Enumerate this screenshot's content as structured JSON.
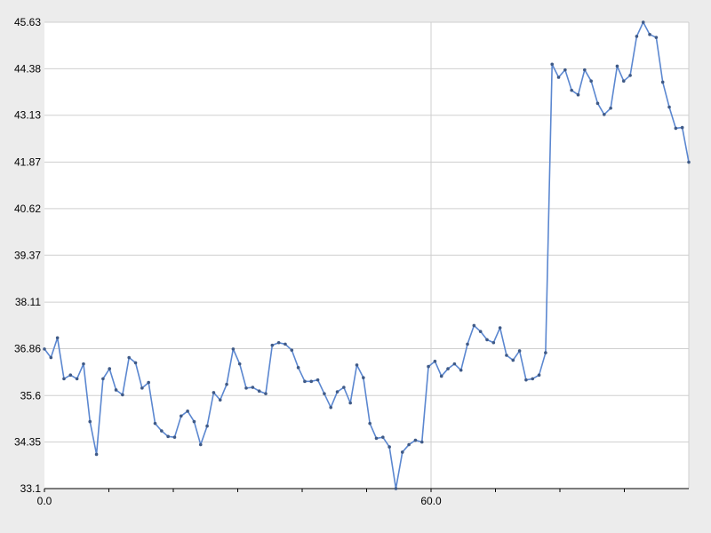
{
  "chart_data": {
    "type": "line",
    "title": "",
    "xlabel": "",
    "ylabel": "",
    "xlim": [
      0,
      100
    ],
    "ylim": [
      33.1,
      45.63
    ],
    "x_tick_labels": [
      {
        "value": 0,
        "label": "0.0"
      },
      {
        "value": 60,
        "label": "60.0"
      }
    ],
    "x_minor_ticks": [
      10,
      20,
      30,
      40,
      50,
      70,
      80,
      90
    ],
    "y_tick_labels": [
      {
        "value": 33.1,
        "label": "33.1"
      },
      {
        "value": 34.35,
        "label": "34.35"
      },
      {
        "value": 35.6,
        "label": "35.6"
      },
      {
        "value": 36.86,
        "label": "36.86"
      },
      {
        "value": 38.11,
        "label": "38.11"
      },
      {
        "value": 39.37,
        "label": "39.37"
      },
      {
        "value": 40.62,
        "label": "40.62"
      },
      {
        "value": 41.87,
        "label": "41.87"
      },
      {
        "value": 43.13,
        "label": "43.13"
      },
      {
        "value": 44.38,
        "label": "44.38"
      },
      {
        "value": 45.63,
        "label": "45.63"
      }
    ],
    "grid": {
      "horizontal": true,
      "vertical_at": [
        60
      ]
    },
    "colors": {
      "line": "#5b87d0",
      "marker": "#3f5a87",
      "grid": "#cfcfcf",
      "plot_bg": "#ffffff",
      "page_bg": "#ececec"
    },
    "series": [
      {
        "values": [
          36.85,
          36.62,
          37.15,
          36.05,
          36.15,
          36.05,
          36.45,
          34.9,
          34.02,
          36.05,
          36.32,
          35.75,
          35.62,
          36.62,
          36.48,
          35.8,
          35.95,
          34.85,
          34.65,
          34.5,
          34.48,
          35.05,
          35.18,
          34.9,
          34.28,
          34.78,
          35.68,
          35.48,
          35.9,
          36.85,
          36.45,
          35.8,
          35.82,
          35.72,
          35.65,
          36.95,
          37.02,
          36.98,
          36.82,
          36.35,
          35.98,
          35.98,
          36.02,
          35.65,
          35.28,
          35.7,
          35.82,
          35.4,
          36.42,
          36.08,
          34.85,
          34.45,
          34.48,
          34.22,
          33.1,
          34.08,
          34.28,
          34.4,
          34.35,
          36.38,
          36.52,
          36.12,
          36.32,
          36.45,
          36.28,
          36.98,
          37.48,
          37.32,
          37.1,
          37.02,
          37.42,
          36.68,
          36.55,
          36.8,
          36.02,
          36.05,
          36.15,
          36.75,
          44.5,
          44.15,
          44.35,
          43.8,
          43.68,
          44.35,
          44.05,
          43.45,
          43.15,
          43.32,
          44.45,
          44.05,
          44.2,
          45.25,
          45.63,
          45.3,
          45.22,
          44.02,
          43.35,
          42.78,
          42.8,
          41.87
        ]
      }
    ]
  }
}
